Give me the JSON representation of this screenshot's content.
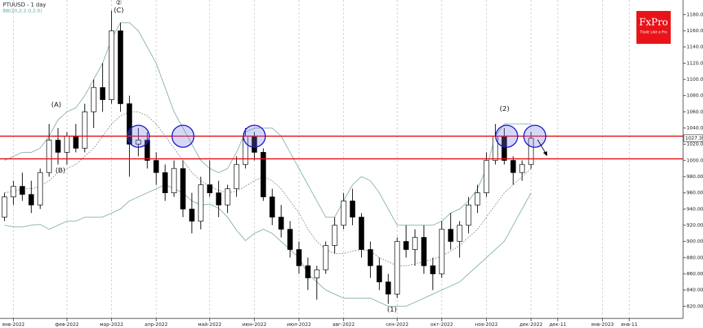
{
  "chart_data": {
    "type": "candlestick",
    "title": "PTUUSD - 1 day",
    "indicator": "BB(20,2,2.0,2.0)",
    "logo": {
      "name": "FxPro",
      "tagline": "Trade Like a Pro"
    },
    "annotations": [
      "(A)",
      "(B)",
      "②",
      "(C)",
      "(2)",
      "(1)"
    ],
    "categories": [
      null,
      "янв-2022",
      null,
      null,
      null,
      null,
      null,
      "фев-2022",
      null,
      null,
      null,
      null,
      "мар-2022",
      null,
      null,
      null,
      null,
      "апр-2022",
      null,
      null,
      null,
      null,
      null,
      "май-2022",
      null,
      null,
      null,
      null,
      "июн-2022",
      null,
      null,
      null,
      null,
      "июл-2022",
      null,
      null,
      null,
      null,
      "авг-2022",
      null,
      null,
      null,
      null,
      null,
      "сен-2022",
      null,
      null,
      null,
      null,
      "окт-2022",
      null,
      null,
      null,
      null,
      "ноя-2022",
      null,
      null,
      null,
      null,
      "дек-2022",
      null,
      null,
      "дек-11",
      null,
      null,
      null,
      null,
      "янв-2023",
      null,
      null,
      "янв-11",
      null,
      null,
      null,
      null,
      null
    ],
    "ohlc": [
      [
        930,
        960,
        925,
        955
      ],
      [
        955,
        975,
        945,
        968
      ],
      [
        968,
        985,
        950,
        958
      ],
      [
        958,
        975,
        935,
        945
      ],
      [
        945,
        990,
        940,
        985
      ],
      [
        985,
        1045,
        980,
        1025
      ],
      [
        1025,
        1040,
        995,
        1010
      ],
      [
        1010,
        1035,
        995,
        1030
      ],
      [
        1030,
        1045,
        1010,
        1015
      ],
      [
        1015,
        1070,
        1010,
        1060
      ],
      [
        1060,
        1100,
        1040,
        1090
      ],
      [
        1090,
        1120,
        1060,
        1075
      ],
      [
        1075,
        1185,
        1070,
        1160
      ],
      [
        1160,
        1170,
        1060,
        1070
      ],
      [
        1070,
        1080,
        980,
        1020
      ],
      [
        1020,
        1040,
        1005,
        1025
      ],
      [
        1025,
        1035,
        990,
        1000
      ],
      [
        1000,
        1010,
        970,
        985
      ],
      [
        985,
        995,
        950,
        960
      ],
      [
        960,
        1000,
        955,
        990
      ],
      [
        990,
        1000,
        930,
        940
      ],
      [
        940,
        960,
        910,
        925
      ],
      [
        925,
        980,
        915,
        970
      ],
      [
        970,
        1000,
        955,
        960
      ],
      [
        960,
        975,
        930,
        945
      ],
      [
        945,
        970,
        935,
        965
      ],
      [
        965,
        1005,
        955,
        995
      ],
      [
        995,
        1040,
        990,
        1030
      ],
      [
        1030,
        1035,
        1000,
        1010
      ],
      [
        1010,
        1015,
        950,
        955
      ],
      [
        955,
        965,
        920,
        930
      ],
      [
        930,
        945,
        905,
        915
      ],
      [
        915,
        925,
        880,
        890
      ],
      [
        890,
        900,
        860,
        870
      ],
      [
        870,
        880,
        840,
        855
      ],
      [
        855,
        870,
        828,
        865
      ],
      [
        865,
        900,
        860,
        895
      ],
      [
        895,
        930,
        885,
        920
      ],
      [
        920,
        960,
        915,
        950
      ],
      [
        950,
        965,
        920,
        930
      ],
      [
        930,
        935,
        880,
        890
      ],
      [
        890,
        900,
        855,
        870
      ],
      [
        870,
        880,
        840,
        850
      ],
      [
        850,
        860,
        823,
        835
      ],
      [
        835,
        905,
        830,
        900
      ],
      [
        900,
        920,
        880,
        890
      ],
      [
        890,
        915,
        870,
        905
      ],
      [
        905,
        920,
        860,
        870
      ],
      [
        870,
        880,
        840,
        860
      ],
      [
        860,
        925,
        855,
        915
      ],
      [
        915,
        935,
        890,
        900
      ],
      [
        900,
        925,
        880,
        920
      ],
      [
        920,
        955,
        910,
        945
      ],
      [
        945,
        970,
        935,
        960
      ],
      [
        960,
        1010,
        955,
        1000
      ],
      [
        1000,
        1045,
        995,
        1030
      ],
      [
        1030,
        1040,
        995,
        1000
      ],
      [
        1000,
        1005,
        970,
        985
      ],
      [
        985,
        1000,
        975,
        995
      ],
      [
        995,
        1035,
        990,
        1027.39
      ],
      null,
      null,
      null,
      null,
      null,
      null,
      null,
      null,
      null,
      null,
      null,
      null,
      null,
      null,
      null,
      null
    ],
    "bb_upper": [
      1000,
      1005,
      1010,
      1010,
      1015,
      1030,
      1050,
      1060,
      1065,
      1080,
      1100,
      1120,
      1150,
      1170,
      1170,
      1160,
      1140,
      1120,
      1090,
      1060,
      1040,
      1020,
      1000,
      990,
      985,
      990,
      1010,
      1035,
      1040,
      1040,
      1040,
      1030,
      1010,
      990,
      970,
      950,
      930,
      930,
      950,
      970,
      980,
      975,
      960,
      940,
      920,
      920,
      920,
      920,
      920,
      925,
      935,
      940,
      950,
      965,
      990,
      1030,
      1045,
      1045,
      1045,
      1045,
      null,
      null,
      null,
      null,
      null,
      null,
      null,
      null,
      null,
      null,
      null,
      null,
      null,
      null,
      null,
      null
    ],
    "bb_mid": [
      960,
      962,
      965,
      965,
      968,
      975,
      985,
      990,
      995,
      1005,
      1015,
      1030,
      1045,
      1055,
      1060,
      1060,
      1055,
      1045,
      1030,
      1015,
      1000,
      985,
      975,
      968,
      963,
      960,
      962,
      968,
      975,
      980,
      975,
      965,
      950,
      935,
      915,
      900,
      890,
      885,
      885,
      888,
      890,
      888,
      880,
      875,
      870,
      870,
      872,
      875,
      878,
      882,
      888,
      895,
      905,
      915,
      930,
      945,
      960,
      970,
      980,
      990,
      null,
      null,
      null,
      null,
      null,
      null,
      null,
      null,
      null,
      null,
      null,
      null,
      null,
      null,
      null,
      null
    ],
    "bb_lower": [
      920,
      918,
      918,
      920,
      921,
      915,
      920,
      925,
      925,
      930,
      930,
      930,
      935,
      940,
      950,
      955,
      960,
      965,
      970,
      965,
      960,
      950,
      945,
      946,
      941,
      930,
      914,
      901,
      910,
      915,
      910,
      900,
      890,
      880,
      860,
      850,
      840,
      835,
      830,
      830,
      830,
      830,
      825,
      820,
      820,
      820,
      825,
      830,
      835,
      840,
      845,
      850,
      860,
      870,
      880,
      890,
      900,
      920,
      940,
      960,
      null,
      null,
      null,
      null,
      null,
      null,
      null,
      null,
      null,
      null,
      null,
      null,
      null,
      null,
      null,
      null
    ],
    "hlines": [
      {
        "value": 1030,
        "color": "#e8141a"
      },
      {
        "value": 1002,
        "color": "#e8141a"
      }
    ],
    "bull_color": "#ffffff",
    "bear_color": "#000000",
    "band_color": "#7fb0a8",
    "ylim": [
      805,
      1198
    ],
    "yticks": [
      {
        "value": 820,
        "label": "820.00"
      },
      {
        "value": 840,
        "label": "840.00"
      },
      {
        "value": 860,
        "label": "860.00"
      },
      {
        "value": 880,
        "label": "880.00"
      },
      {
        "value": 900,
        "label": "900.00"
      },
      {
        "value": 920,
        "label": "920.00"
      },
      {
        "value": 940,
        "label": "940.00"
      },
      {
        "value": 960,
        "label": "960.00"
      },
      {
        "value": 980,
        "label": "980.00"
      },
      {
        "value": 1000,
        "label": "1000.00"
      },
      {
        "value": 1020,
        "label": "1020.00"
      },
      {
        "value": 1040,
        "label": "1040.00"
      },
      {
        "value": 1060,
        "label": "1060.00"
      },
      {
        "value": 1080,
        "label": "1080.00"
      },
      {
        "value": 1100,
        "label": "1100.00"
      },
      {
        "value": 1120,
        "label": "1120.00"
      },
      {
        "value": 1140,
        "label": "1140.00"
      },
      {
        "value": 1160,
        "label": "1160.00"
      },
      {
        "value": 1180,
        "label": "1180.00"
      }
    ],
    "grid": true
  }
}
